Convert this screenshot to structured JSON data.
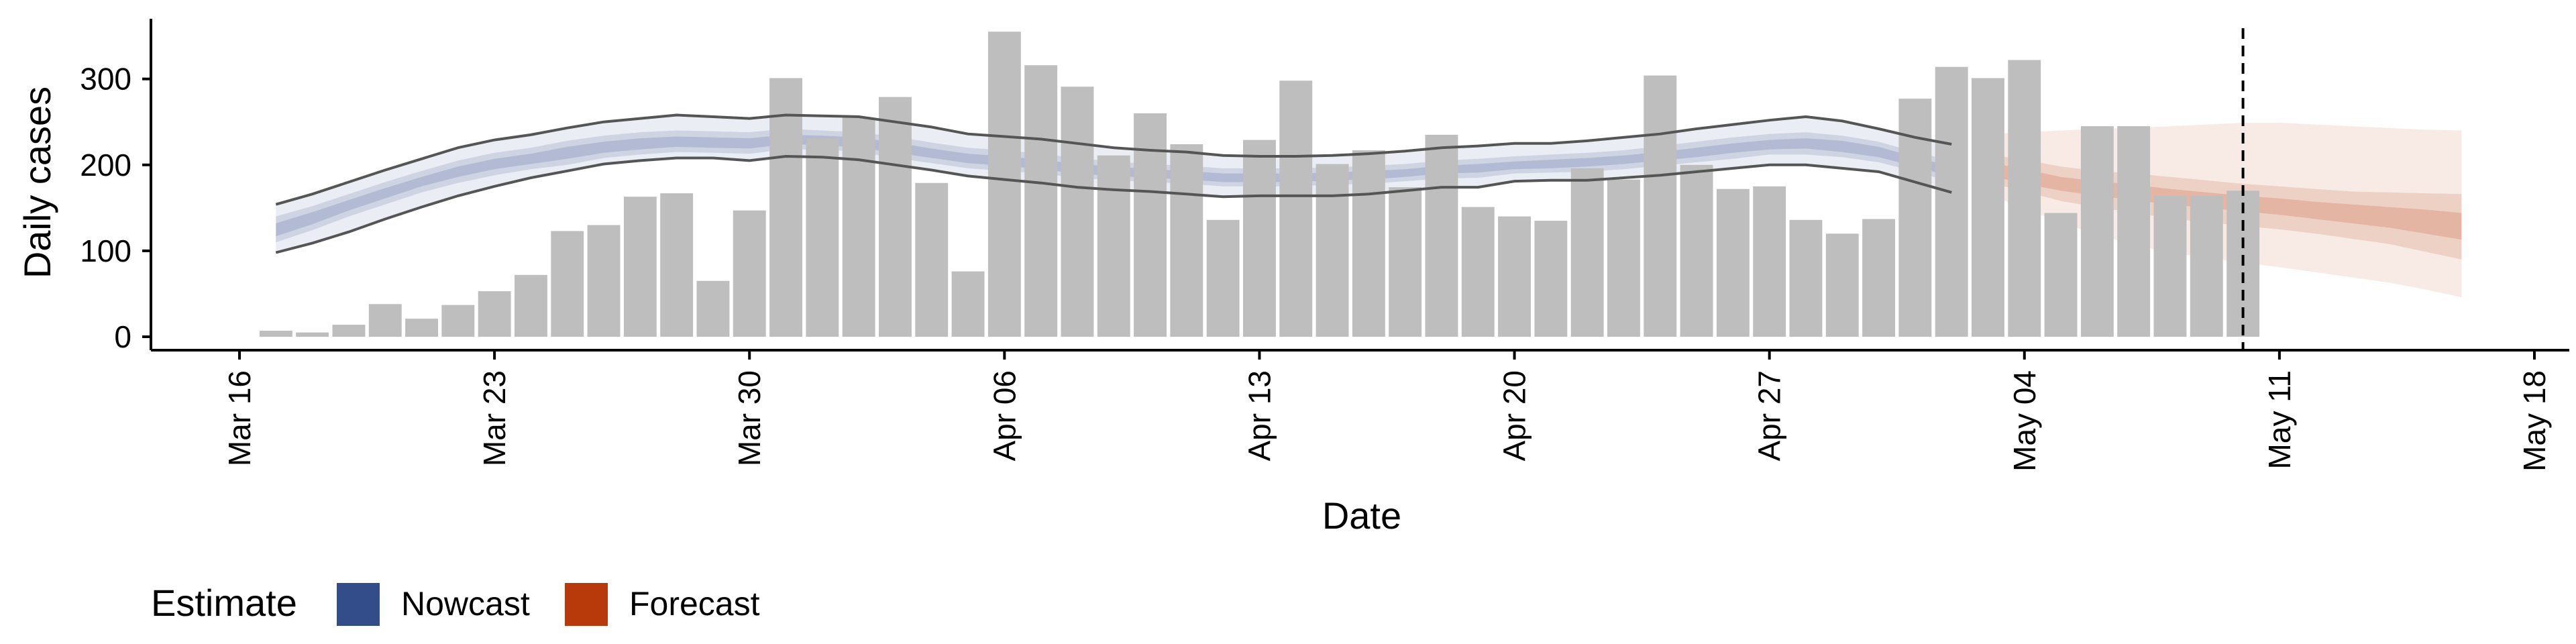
{
  "chart_data": {
    "type": "bar",
    "title": "",
    "xlabel": "Date",
    "ylabel": "Daily cases",
    "ylim": [
      0,
      370
    ],
    "xlim": [
      "2020-03-16",
      "2020-05-18"
    ],
    "yticks": [
      0,
      100,
      200,
      300
    ],
    "ytick_labels": [
      "0",
      "100",
      "200",
      "300"
    ],
    "xticks": [
      "2020-03-16",
      "2020-03-23",
      "2020-03-30",
      "2020-04-06",
      "2020-04-13",
      "2020-04-20",
      "2020-04-27",
      "2020-05-04",
      "2020-05-11",
      "2020-05-18"
    ],
    "xtick_labels": [
      "Mar 16",
      "Mar 23",
      "Mar 30",
      "Apr 06",
      "Apr 13",
      "Apr 20",
      "Apr 27",
      "May 04",
      "May 11",
      "May 18"
    ],
    "grid": false,
    "legend": {
      "title": "Estimate",
      "position": "bottom-left",
      "entries": [
        {
          "label": "Nowcast",
          "color": "#334d8a"
        },
        {
          "label": "Forecast",
          "color": "#b83a0b"
        }
      ]
    },
    "vline": {
      "date": "2020-05-10",
      "style": "dashed",
      "color": "#000000"
    },
    "bars": {
      "color": "#bebebe",
      "dates": [
        "2020-03-17",
        "2020-03-18",
        "2020-03-19",
        "2020-03-20",
        "2020-03-21",
        "2020-03-22",
        "2020-03-23",
        "2020-03-24",
        "2020-03-25",
        "2020-03-26",
        "2020-03-27",
        "2020-03-28",
        "2020-03-29",
        "2020-03-30",
        "2020-03-31",
        "2020-04-01",
        "2020-04-02",
        "2020-04-03",
        "2020-04-04",
        "2020-04-05",
        "2020-04-06",
        "2020-04-07",
        "2020-04-08",
        "2020-04-09",
        "2020-04-10",
        "2020-04-11",
        "2020-04-12",
        "2020-04-13",
        "2020-04-14",
        "2020-04-15",
        "2020-04-16",
        "2020-04-17",
        "2020-04-18",
        "2020-04-19",
        "2020-04-20",
        "2020-04-21",
        "2020-04-22",
        "2020-04-23",
        "2020-04-24",
        "2020-04-25",
        "2020-04-26",
        "2020-04-27",
        "2020-04-28",
        "2020-04-29",
        "2020-04-30",
        "2020-05-01",
        "2020-05-02",
        "2020-05-03",
        "2020-05-04",
        "2020-05-05",
        "2020-05-06",
        "2020-05-07",
        "2020-05-08",
        "2020-05-09",
        "2020-05-10"
      ],
      "values": [
        7,
        5,
        14,
        38,
        21,
        37,
        53,
        72,
        123,
        130,
        163,
        167,
        65,
        147,
        301,
        231,
        255,
        279,
        179,
        76,
        355,
        316,
        291,
        211,
        260,
        224,
        136,
        229,
        298,
        201,
        217,
        174,
        235,
        151,
        140,
        135,
        196,
        183,
        304,
        200,
        172,
        175,
        136,
        120,
        137,
        277,
        314,
        301,
        322,
        144,
        245,
        245,
        164,
        164,
        170
      ]
    },
    "series": [
      {
        "name": "Nowcast",
        "type": "ribbon",
        "color": "#334d8a",
        "dates": [
          "2020-03-17",
          "2020-03-18",
          "2020-03-19",
          "2020-03-20",
          "2020-03-21",
          "2020-03-22",
          "2020-03-23",
          "2020-03-24",
          "2020-03-25",
          "2020-03-26",
          "2020-03-27",
          "2020-03-28",
          "2020-03-29",
          "2020-03-30",
          "2020-03-31",
          "2020-04-01",
          "2020-04-02",
          "2020-04-03",
          "2020-04-04",
          "2020-04-05",
          "2020-04-06",
          "2020-04-07",
          "2020-04-08",
          "2020-04-09",
          "2020-04-10",
          "2020-04-11",
          "2020-04-12",
          "2020-04-13",
          "2020-04-14",
          "2020-04-15",
          "2020-04-16",
          "2020-04-17",
          "2020-04-18",
          "2020-04-19",
          "2020-04-20",
          "2020-04-21",
          "2020-04-22",
          "2020-04-23",
          "2020-04-24",
          "2020-04-25",
          "2020-04-26",
          "2020-04-27",
          "2020-04-28",
          "2020-04-29",
          "2020-04-30",
          "2020-05-01",
          "2020-05-02"
        ],
        "lower90": [
          98,
          109,
          122,
          137,
          151,
          164,
          175,
          185,
          193,
          201,
          205,
          208,
          208,
          205,
          210,
          209,
          206,
          200,
          194,
          187,
          183,
          179,
          174,
          171,
          169,
          166,
          163,
          164,
          164,
          164,
          166,
          170,
          174,
          174,
          181,
          182,
          182,
          185,
          188,
          192,
          196,
          200,
          200,
          196,
          192,
          180,
          168
        ],
        "upper90": [
          154,
          166,
          180,
          194,
          207,
          220,
          229,
          235,
          243,
          250,
          254,
          258,
          256,
          254,
          258,
          257,
          256,
          250,
          244,
          236,
          233,
          230,
          225,
          220,
          217,
          215,
          211,
          210,
          210,
          211,
          213,
          216,
          220,
          222,
          225,
          225,
          228,
          232,
          236,
          242,
          247,
          252,
          256,
          251,
          242,
          232,
          224
        ],
        "lower50": [
          110,
          124,
          140,
          154,
          168,
          179,
          188,
          195,
          200,
          208,
          212,
          215,
          214,
          213,
          218,
          218,
          215,
          208,
          202,
          196,
          193,
          190,
          185,
          182,
          180,
          178,
          175,
          175,
          175,
          177,
          178,
          181,
          184,
          185,
          190,
          191,
          192,
          195,
          199,
          203,
          207,
          212,
          212,
          209,
          203,
          192,
          180
        ],
        "upper50": [
          140,
          152,
          166,
          180,
          193,
          205,
          214,
          220,
          228,
          234,
          238,
          240,
          239,
          238,
          242,
          240,
          238,
          233,
          226,
          220,
          217,
          213,
          208,
          204,
          201,
          199,
          196,
          196,
          196,
          197,
          199,
          201,
          205,
          207,
          210,
          212,
          214,
          217,
          222,
          227,
          232,
          236,
          238,
          234,
          227,
          215,
          205
        ],
        "lower20": [
          117,
          131,
          147,
          161,
          175,
          186,
          195,
          201,
          207,
          214,
          218,
          221,
          220,
          219,
          224,
          223,
          220,
          214,
          208,
          202,
          199,
          195,
          190,
          187,
          185,
          183,
          180,
          180,
          180,
          182,
          183,
          186,
          190,
          191,
          195,
          196,
          198,
          201,
          205,
          209,
          214,
          218,
          219,
          215,
          209,
          198,
          186
        ],
        "upper20": [
          132,
          145,
          159,
          173,
          186,
          198,
          207,
          213,
          221,
          227,
          231,
          233,
          232,
          231,
          235,
          234,
          232,
          226,
          219,
          213,
          210,
          206,
          201,
          198,
          195,
          193,
          190,
          190,
          190,
          191,
          193,
          195,
          199,
          201,
          204,
          206,
          208,
          211,
          215,
          220,
          225,
          229,
          231,
          228,
          221,
          209,
          198
        ]
      },
      {
        "name": "Forecast",
        "type": "ribbon",
        "color": "#b83a0b",
        "dates": [
          "2020-05-03",
          "2020-05-04",
          "2020-05-05",
          "2020-05-06",
          "2020-05-07",
          "2020-05-08",
          "2020-05-09",
          "2020-05-10",
          "2020-05-11",
          "2020-05-12",
          "2020-05-13",
          "2020-05-14",
          "2020-05-15",
          "2020-05-16"
        ],
        "lower90": [
          166,
          149,
          133,
          119,
          107,
          98,
          92,
          86,
          81,
          75,
          69,
          63,
          55,
          46
        ],
        "upper90": [
          236,
          238,
          240,
          242,
          243,
          245,
          247,
          249,
          249,
          247,
          245,
          243,
          241,
          240
        ],
        "lower50": [
          180,
          169,
          158,
          151,
          144,
          138,
          133,
          129,
          125,
          120,
          114,
          108,
          99,
          90
        ],
        "upper50": [
          212,
          206,
          198,
          193,
          190,
          186,
          182,
          178,
          175,
          172,
          169,
          168,
          167,
          166
        ],
        "lower20": [
          188,
          178,
          170,
          164,
          159,
          154,
          150,
          146,
          142,
          137,
          132,
          127,
          120,
          113
        ],
        "upper20": [
          203,
          195,
          186,
          181,
          177,
          172,
          168,
          164,
          161,
          157,
          154,
          151,
          148,
          144
        ]
      }
    ]
  }
}
